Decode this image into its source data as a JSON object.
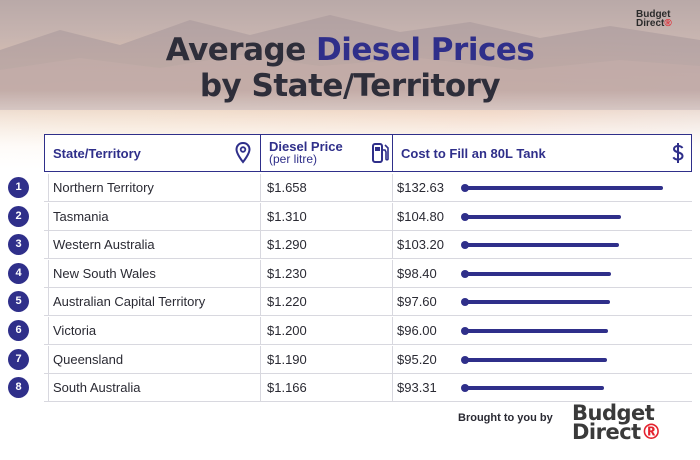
{
  "brand": {
    "logo_line1": "Budget",
    "logo_line2": "Direct",
    "footer_prefix": "Brought to you by"
  },
  "title": {
    "line1_part1": "Average ",
    "line1_accent": "Diesel Prices",
    "line2": "by State/Territory"
  },
  "colors": {
    "accent": "#2f2f8a",
    "text": "#2e2e3a",
    "logo_red": "#e4222e"
  },
  "table": {
    "headers": {
      "state": "State/Territory",
      "price": "Diesel Price",
      "price_sub": "(per litre)",
      "cost": "Cost to Fill an 80L Tank"
    },
    "icons": {
      "state": "location-pin-icon",
      "price": "fuel-pump-icon",
      "cost": "dollar-icon"
    },
    "rows": [
      {
        "rank": "1",
        "state": "Northern Territory",
        "price": "$1.658",
        "cost": "$132.63"
      },
      {
        "rank": "2",
        "state": "Tasmania",
        "price": "$1.310",
        "cost": "$104.80"
      },
      {
        "rank": "3",
        "state": "Western Australia",
        "price": "$1.290",
        "cost": "$103.20"
      },
      {
        "rank": "4",
        "state": "New South Wales",
        "price": "$1.230",
        "cost": "$98.40"
      },
      {
        "rank": "5",
        "state": "Australian Capital Territory",
        "price": "$1.220",
        "cost": "$97.60"
      },
      {
        "rank": "6",
        "state": "Victoria",
        "price": "$1.200",
        "cost": "$96.00"
      },
      {
        "rank": "7",
        "state": "Queensland",
        "price": "$1.190",
        "cost": "$95.20"
      },
      {
        "rank": "8",
        "state": "South Australia",
        "price": "$1.166",
        "cost": "$93.31"
      }
    ]
  },
  "chart_data": {
    "type": "bar",
    "categories": [
      "Northern Territory",
      "Tasmania",
      "Western Australia",
      "New South Wales",
      "Australian Capital Territory",
      "Victoria",
      "Queensland",
      "South Australia"
    ],
    "series": [
      {
        "name": "Diesel Price",
        "values": [
          1.658,
          1.31,
          1.29,
          1.23,
          1.22,
          1.2,
          1.19,
          1.166
        ]
      },
      {
        "name": "Cost to Fill an 80L Tank",
        "values": [
          132.63,
          104.8,
          103.2,
          98.4,
          97.6,
          96.0,
          95.2,
          93.31
        ]
      }
    ],
    "title": "Average Diesel Prices by State/Territory",
    "xlabel": "",
    "ylabel": ""
  }
}
